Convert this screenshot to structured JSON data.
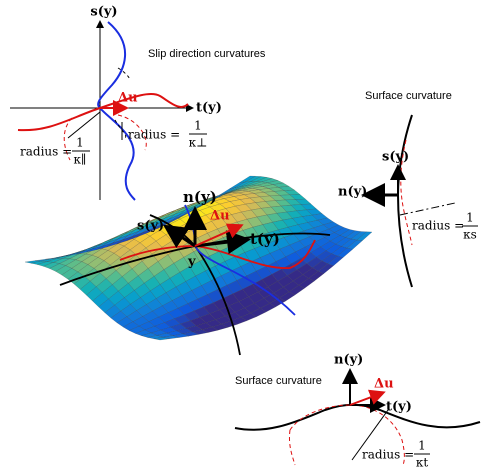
{
  "slip_panel": {
    "title": "Slip direction curvatures",
    "axis_s": "s(y)",
    "axis_t": "t(y)",
    "delta": "Δu",
    "radius_par": {
      "prefix": "radius =",
      "num": "1",
      "den": "κ∥"
    },
    "radius_perp": {
      "prefix": "radius =",
      "num": "1",
      "den": "κ⊥"
    }
  },
  "surface_panel": {
    "title": "Surface curvature",
    "s": "s(y)",
    "n": "n(y)",
    "radius": {
      "prefix": "radius =",
      "num": "1",
      "den": "κs"
    }
  },
  "main_surface": {
    "n": "n(y)",
    "s": "s(y)",
    "t": "t(y)",
    "delta": "Δu",
    "point": "y"
  },
  "bottom_panel": {
    "title": "Surface curvature",
    "n": "n(y)",
    "t": "t(y)",
    "delta": "Δu",
    "radius": {
      "prefix": "radius =",
      "num": "1",
      "den": "κt"
    }
  }
}
